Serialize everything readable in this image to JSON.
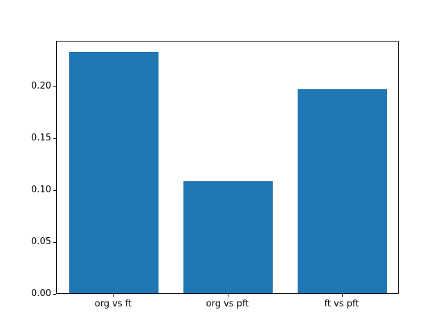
{
  "chart_data": {
    "type": "bar",
    "categories": [
      "org vs ft",
      "org vs pft",
      "ft vs pft"
    ],
    "values": [
      0.233,
      0.108,
      0.197
    ],
    "title": "",
    "xlabel": "",
    "ylabel": "",
    "ylim": [
      0,
      0.244
    ],
    "yticks": [
      0.0,
      0.05,
      0.1,
      0.15,
      0.2
    ],
    "ytick_labels": [
      "0.00",
      "0.05",
      "0.10",
      "0.15",
      "0.20"
    ],
    "bar_color": "#1f77b4",
    "background_color": "#ffffff",
    "spine_color": "#000000",
    "grid": false,
    "legend_position": "none",
    "bar_width_fraction": 0.78
  }
}
